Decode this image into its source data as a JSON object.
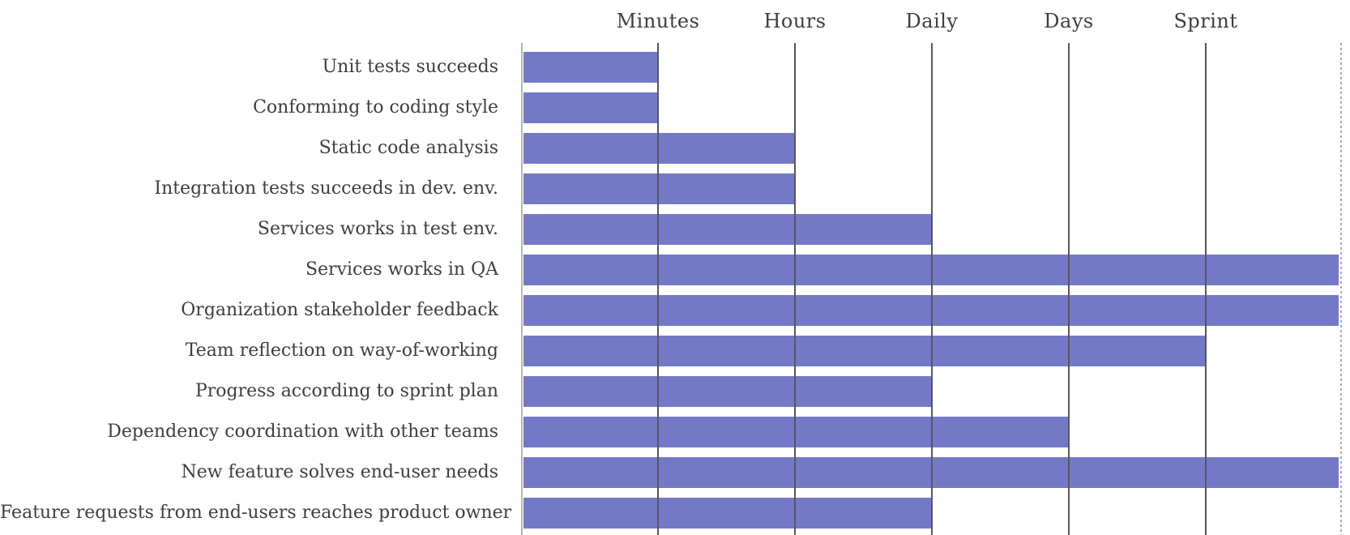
{
  "chart_data": {
    "type": "bar",
    "orientation": "horizontal",
    "title": "",
    "legend": "none",
    "column_headers": [
      "Minutes",
      "Hours",
      "Daily",
      "Days",
      "Sprint"
    ],
    "categories": [
      "Unit tests succeeds",
      "Conforming to coding style",
      "Static code analysis",
      "Integration tests succeeds in dev. env.",
      "Services works in test env.",
      "Services works in QA",
      "Organization stakeholder feedback",
      "Team reflection on way-of-working",
      "Progress according to sprint plan",
      "Dependency coordination with other teams",
      "New feature solves end-user needs",
      "Feature requests from end-users reaches product owner"
    ],
    "values": [
      1,
      1,
      2,
      2,
      3,
      6,
      6,
      5,
      3,
      4,
      6,
      3
    ],
    "value_scale_note": "bar length in column units: 1=Minutes, 2=Hours, 3=Daily, 4=Days, 5=Sprint, 6=extends past Sprint to chart right edge",
    "xlim": [
      0,
      6
    ],
    "grid": "vertical solid gridline under each column header; dashed gridline at right edge; no horizontal gridlines",
    "colors": {
      "bar": "#7479C7",
      "gridline": "#575757",
      "axis": "#b5b5b5",
      "dashed_edge": "#ababab",
      "text": "#3e3e3e",
      "background": "#ffffff"
    }
  }
}
